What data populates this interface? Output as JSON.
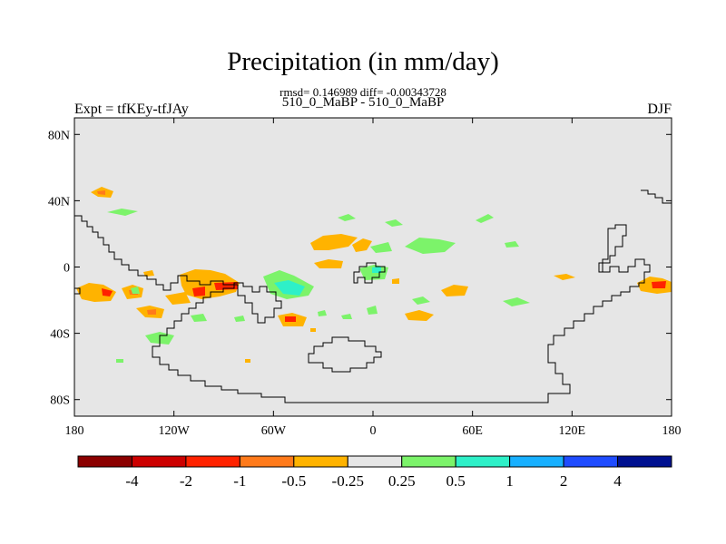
{
  "title": "Precipitation (in mm/day)",
  "stats": "rmsd= 0.146989 diff= -0.00343728",
  "cases": "510_0_MaBP - 510_0_MaBP",
  "expt": "Expt = tfKEy-tfJAy",
  "season": "DJF",
  "map": {
    "background": "#e6e6e6",
    "lon_range": [
      -180,
      180
    ],
    "lat_range": [
      -90,
      90
    ],
    "lat_ticks": [
      {
        "value": 80,
        "label": "80N"
      },
      {
        "value": 40,
        "label": "40N"
      },
      {
        "value": 0,
        "label": "0"
      },
      {
        "value": -40,
        "label": "40S"
      },
      {
        "value": -80,
        "label": "80S"
      }
    ],
    "lon_ticks": [
      {
        "value": -180,
        "label": "180"
      },
      {
        "value": -120,
        "label": "120W"
      },
      {
        "value": -60,
        "label": "60W"
      },
      {
        "value": 0,
        "label": "0"
      },
      {
        "value": 60,
        "label": "60E"
      },
      {
        "value": 120,
        "label": "120E"
      },
      {
        "value": 180,
        "label": "180"
      }
    ]
  },
  "colorbar": {
    "colors": [
      "#8b0000",
      "#cc0000",
      "#ff2200",
      "#ff7a1a",
      "#ffb300",
      "#e6e6e6",
      "#7cf36a",
      "#2ef0c8",
      "#18b0ff",
      "#1f4cff",
      "#001190"
    ],
    "labels": [
      "-4",
      "-2",
      "-1",
      "-0.5",
      "-0.25",
      "0.25",
      "0.5",
      "1",
      "2",
      "4"
    ]
  }
}
